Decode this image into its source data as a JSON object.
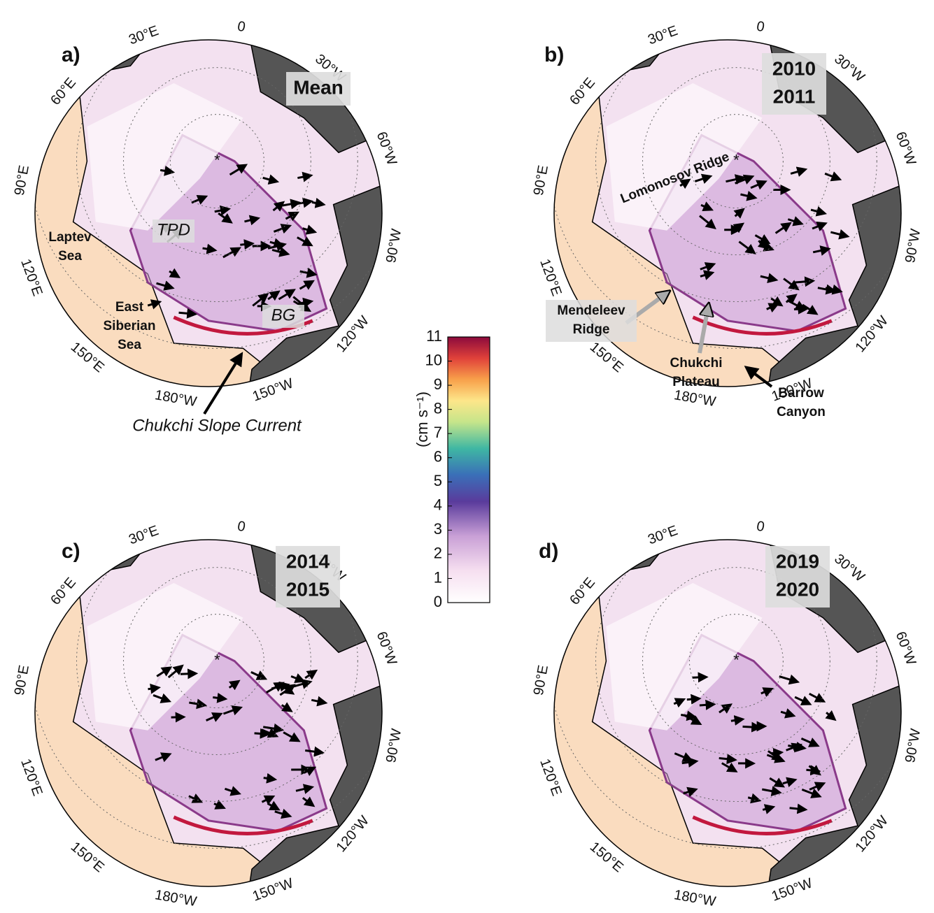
{
  "longitude_labels": [
    "0",
    "30°W",
    "60°W",
    "90°W",
    "120°W",
    "150°W",
    "180°W",
    "150°E",
    "120°E",
    "90°E",
    "60°E",
    "30°E"
  ],
  "panels": [
    {
      "label": "a)",
      "period": [
        "Mean"
      ],
      "annotations": [
        [
          "Laptev",
          "Sea"
        ],
        [
          "East",
          "Siberian",
          "Sea"
        ],
        [
          "TPD"
        ],
        [
          "BG"
        ],
        [
          "Chukchi Slope Current"
        ]
      ]
    },
    {
      "label": "b)",
      "period": [
        "2010",
        "2011"
      ],
      "annotations": [
        [
          "Lomonosov Ridge"
        ],
        [
          "Mendeleev",
          "Ridge"
        ],
        [
          "Chukchi",
          "Plateau"
        ],
        [
          "Barrow",
          "Canyon"
        ]
      ]
    },
    {
      "label": "c)",
      "period": [
        "2014",
        "2015"
      ],
      "annotations": []
    },
    {
      "label": "d)",
      "period": [
        "2019",
        "2020"
      ],
      "annotations": []
    }
  ],
  "colorbar": {
    "label": "(cm s⁻¹)",
    "lim": [
      0,
      11
    ],
    "ticks": [
      0,
      1,
      2,
      3,
      4,
      5,
      6,
      7,
      8,
      9,
      10,
      11
    ]
  }
}
